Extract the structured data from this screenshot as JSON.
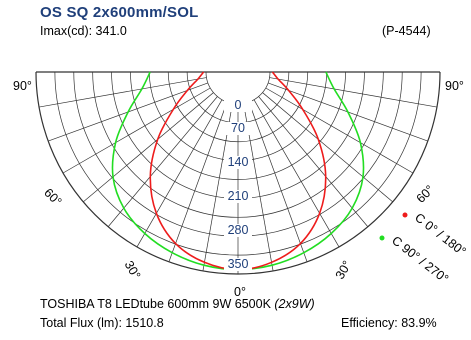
{
  "header": {
    "title": "OS SQ 2x600mm/SOL",
    "imax": "Imax(cd): 341.0",
    "ref": "(P-4544)"
  },
  "footer": {
    "lamp": "TOSHIBA T8 LEDtube 600mm 9W 6500K",
    "lamp_qty": "(2x9W)",
    "flux": "Total Flux (lm): 1510.8",
    "efficiency": "Efficiency: 83.9%"
  },
  "colors": {
    "c0": "#ee1c1c",
    "c90": "#22dd22",
    "grid": "#333333",
    "value_labels": "#1f3f7a"
  },
  "chart_data": {
    "type": "polar",
    "angle_labels": [
      "90°",
      "90°",
      "60°",
      "60°",
      "30°",
      "30°",
      "0°"
    ],
    "radial_ticks": [
      0,
      70,
      140,
      210,
      280,
      350
    ],
    "rmax": 350,
    "series": [
      {
        "name": "C 0° / 180°",
        "color": "#ee1c1c",
        "angles": [
          0,
          10,
          20,
          30,
          40,
          50,
          60,
          70,
          80,
          90
        ],
        "values": [
          341,
          332,
          310,
          270,
          215,
          150,
          88,
          45,
          18,
          5
        ]
      },
      {
        "name": "C 90° / 270°",
        "color": "#22dd22",
        "angles": [
          0,
          10,
          20,
          30,
          40,
          50,
          60,
          70,
          80,
          90
        ],
        "values": [
          341,
          338,
          330,
          318,
          300,
          270,
          225,
          175,
          135,
          115
        ]
      }
    ]
  }
}
